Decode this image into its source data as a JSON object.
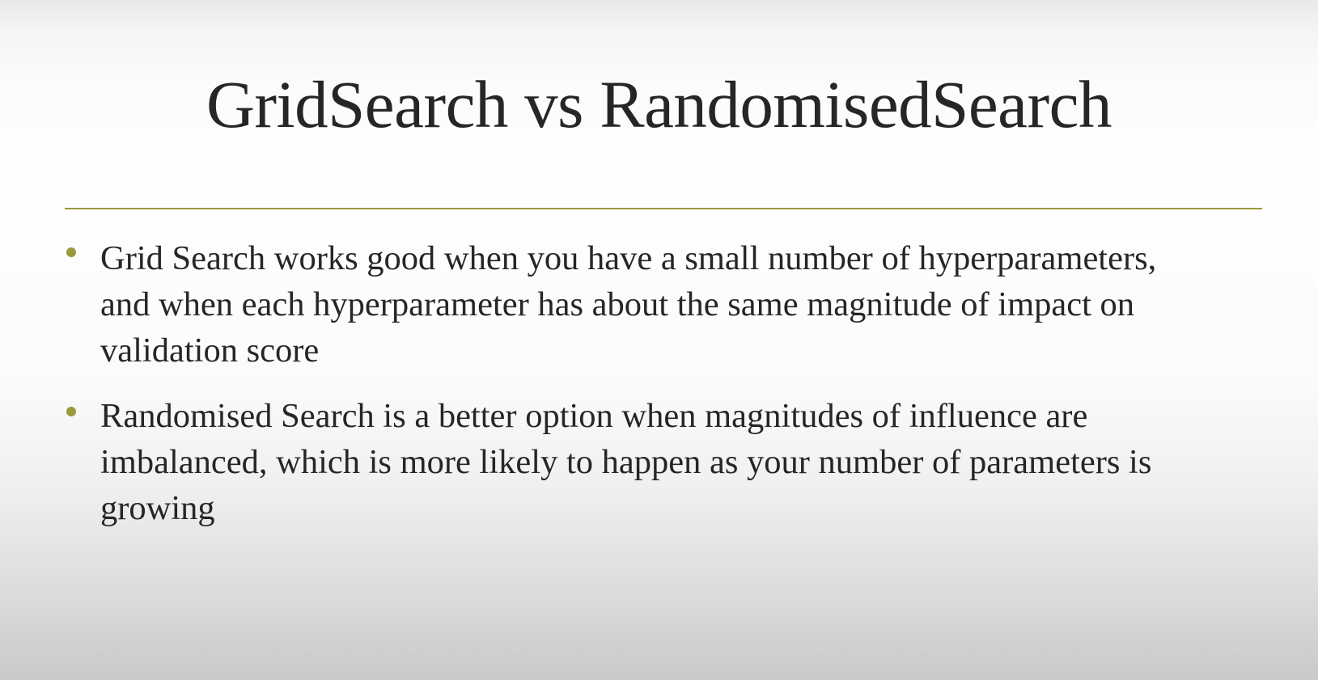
{
  "slide": {
    "title": "GridSearch vs RandomisedSearch",
    "accent_color": "#9a9a3c",
    "bullets": [
      {
        "lines": [
          "Grid Search works good when you have a small number of hyperparameters,",
          "and when each hyperparameter has about the same magnitude of impact on",
          "validation score"
        ]
      },
      {
        "lines": [
          "Randomised Search is a better option when magnitudes of influence are",
          "imbalanced, which is more likely to happen as your number of parameters is",
          "growing"
        ]
      }
    ]
  }
}
